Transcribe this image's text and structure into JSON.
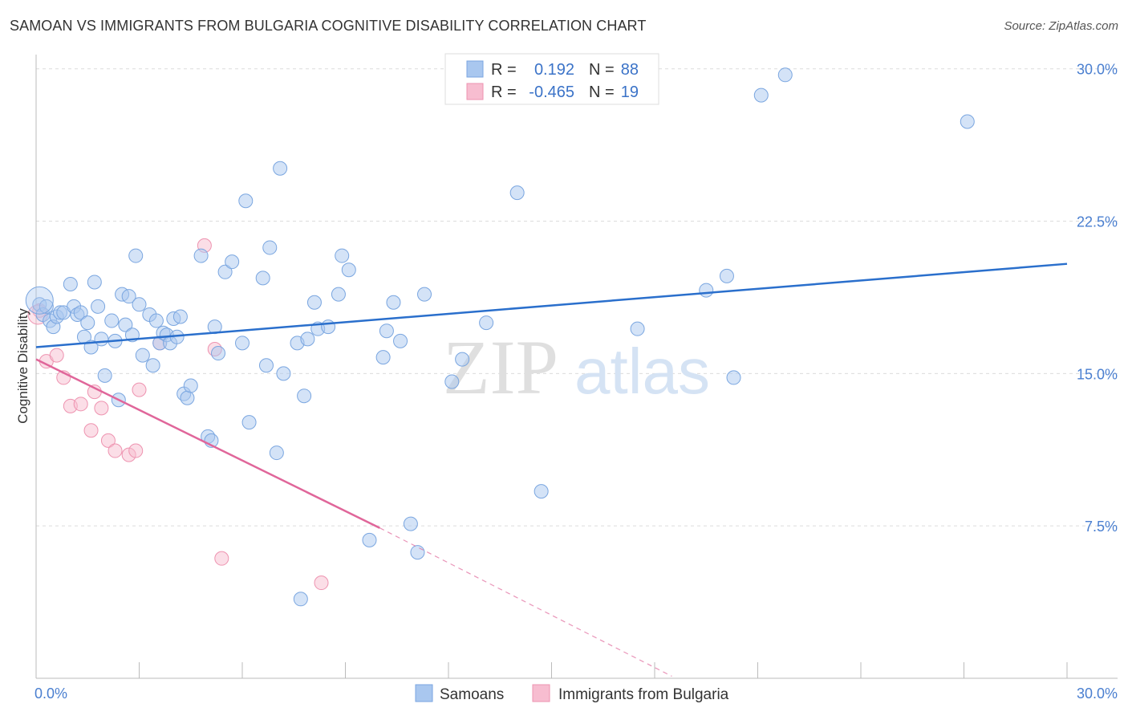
{
  "title": "SAMOAN VS IMMIGRANTS FROM BULGARIA COGNITIVE DISABILITY CORRELATION CHART",
  "source": "Source: ZipAtlas.com",
  "watermark": {
    "zip": "ZIP",
    "atlas": "atlas"
  },
  "chart_data": {
    "type": "scatter",
    "title": "SAMOAN VS IMMIGRANTS FROM BULGARIA COGNITIVE DISABILITY CORRELATION CHART",
    "xlabel": "",
    "ylabel": "Cognitive Disability",
    "xlim": [
      0,
      30
    ],
    "ylim": [
      0,
      30.7
    ],
    "x_tick_labels": {
      "left": "0.0%",
      "right": "30.0%"
    },
    "y_ticks": [
      {
        "value": 7.5,
        "label": "7.5%"
      },
      {
        "value": 15.0,
        "label": "15.0%"
      },
      {
        "value": 22.5,
        "label": "22.5%"
      },
      {
        "value": 30.0,
        "label": "30.0%"
      }
    ],
    "legend": {
      "position": "top-center",
      "rows": [
        {
          "r_label": "R =",
          "r_value": "0.192",
          "n_label": "N =",
          "n_value": "88"
        },
        {
          "r_label": "R =",
          "r_value": "-0.465",
          "n_label": "N =",
          "n_value": "19"
        }
      ]
    },
    "series": [
      {
        "name": "Samoans",
        "color": "#a9c7ef",
        "stroke": "#7aa6e0",
        "trend_color": "#2a6fcc",
        "trend": {
          "x0": 0.0,
          "y0": 16.3,
          "x1": 30.0,
          "y1": 20.4
        },
        "points": [
          [
            0.1,
            18.4
          ],
          [
            0.2,
            17.9
          ],
          [
            0.3,
            18.3
          ],
          [
            0.4,
            17.6
          ],
          [
            0.5,
            17.3
          ],
          [
            0.6,
            17.8
          ],
          [
            0.7,
            18.0
          ],
          [
            0.8,
            18.0
          ],
          [
            1.0,
            19.4
          ],
          [
            1.1,
            18.3
          ],
          [
            1.2,
            17.9
          ],
          [
            1.3,
            18.0
          ],
          [
            1.4,
            16.8
          ],
          [
            1.5,
            17.5
          ],
          [
            1.6,
            16.3
          ],
          [
            1.7,
            19.5
          ],
          [
            1.8,
            18.3
          ],
          [
            1.9,
            16.7
          ],
          [
            2.0,
            14.9
          ],
          [
            2.2,
            17.6
          ],
          [
            2.3,
            16.6
          ],
          [
            2.4,
            13.7
          ],
          [
            2.5,
            18.9
          ],
          [
            2.6,
            17.4
          ],
          [
            2.7,
            18.8
          ],
          [
            2.8,
            16.9
          ],
          [
            2.9,
            20.8
          ],
          [
            3.0,
            18.4
          ],
          [
            3.1,
            15.9
          ],
          [
            3.3,
            17.9
          ],
          [
            3.4,
            15.4
          ],
          [
            3.5,
            17.6
          ],
          [
            3.6,
            16.5
          ],
          [
            3.7,
            17.0
          ],
          [
            3.8,
            16.9
          ],
          [
            3.9,
            16.5
          ],
          [
            4.0,
            17.7
          ],
          [
            4.1,
            16.8
          ],
          [
            4.2,
            17.8
          ],
          [
            4.3,
            14.0
          ],
          [
            4.4,
            13.8
          ],
          [
            4.5,
            14.4
          ],
          [
            4.8,
            20.8
          ],
          [
            5.0,
            11.9
          ],
          [
            5.1,
            11.7
          ],
          [
            5.2,
            17.3
          ],
          [
            5.3,
            16.0
          ],
          [
            5.5,
            20.0
          ],
          [
            5.7,
            20.5
          ],
          [
            6.0,
            16.5
          ],
          [
            6.1,
            23.5
          ],
          [
            6.2,
            12.6
          ],
          [
            6.6,
            19.7
          ],
          [
            6.7,
            15.4
          ],
          [
            6.8,
            21.2
          ],
          [
            7.0,
            11.1
          ],
          [
            7.1,
            25.1
          ],
          [
            7.2,
            15.0
          ],
          [
            7.6,
            16.5
          ],
          [
            7.7,
            3.9
          ],
          [
            7.8,
            13.9
          ],
          [
            7.9,
            16.7
          ],
          [
            8.1,
            18.5
          ],
          [
            8.2,
            17.2
          ],
          [
            8.5,
            17.3
          ],
          [
            8.8,
            18.9
          ],
          [
            8.9,
            20.8
          ],
          [
            9.1,
            20.1
          ],
          [
            9.7,
            6.8
          ],
          [
            10.1,
            15.8
          ],
          [
            10.2,
            17.1
          ],
          [
            10.4,
            18.5
          ],
          [
            10.6,
            16.6
          ],
          [
            10.9,
            7.6
          ],
          [
            11.1,
            6.2
          ],
          [
            11.3,
            18.9
          ],
          [
            12.1,
            14.6
          ],
          [
            12.4,
            15.7
          ],
          [
            13.1,
            17.5
          ],
          [
            14.0,
            23.9
          ],
          [
            14.7,
            9.2
          ],
          [
            17.5,
            17.2
          ],
          [
            19.5,
            19.1
          ],
          [
            20.1,
            19.8
          ],
          [
            20.3,
            14.8
          ],
          [
            21.1,
            28.7
          ],
          [
            21.8,
            29.7
          ],
          [
            27.1,
            27.4
          ]
        ]
      },
      {
        "name": "Immigrants from Bulgaria",
        "color": "#f7bdd0",
        "stroke": "#ee93b0",
        "trend_color": "#e0669a",
        "trend": {
          "x0": 0.0,
          "y0": 15.7,
          "x1": 10.0,
          "y1": 7.4
        },
        "trend_dashed": {
          "x0": 10.0,
          "y0": 7.4,
          "x1": 18.5,
          "y1": 0.1
        },
        "points": [
          [
            0.1,
            18.1
          ],
          [
            0.3,
            15.6
          ],
          [
            0.6,
            15.9
          ],
          [
            0.8,
            14.8
          ],
          [
            1.0,
            13.4
          ],
          [
            1.3,
            13.5
          ],
          [
            1.6,
            12.2
          ],
          [
            1.7,
            14.1
          ],
          [
            1.9,
            13.3
          ],
          [
            2.1,
            11.7
          ],
          [
            2.3,
            11.2
          ],
          [
            2.7,
            11.0
          ],
          [
            2.9,
            11.2
          ],
          [
            3.0,
            14.2
          ],
          [
            3.6,
            16.5
          ],
          [
            4.9,
            21.3
          ],
          [
            5.2,
            16.2
          ],
          [
            5.4,
            5.9
          ],
          [
            8.3,
            4.7
          ]
        ]
      }
    ]
  }
}
